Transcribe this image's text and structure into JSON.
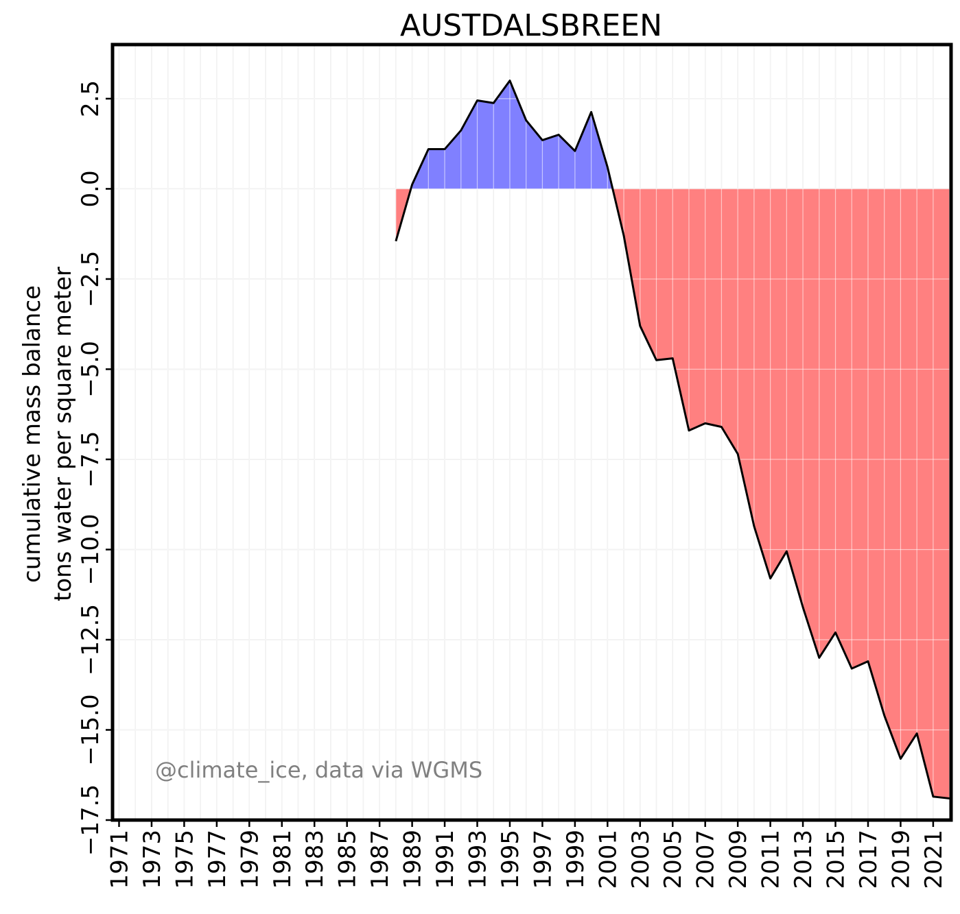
{
  "chart_data": {
    "type": "area",
    "title": "AUSTDALSBREEN",
    "ylabel_line1": "cumulative mass balance",
    "ylabel_line2": "tons water per square meter",
    "xlabel": "",
    "annotation": "@climate_ice, data via WGMS",
    "xlim": [
      1970.6,
      2022.1
    ],
    "ylim": [
      -17.5,
      4.0
    ],
    "x_ticks": [
      1971,
      1973,
      1975,
      1977,
      1979,
      1981,
      1983,
      1985,
      1987,
      1989,
      1991,
      1993,
      1995,
      1997,
      1999,
      2001,
      2003,
      2005,
      2007,
      2009,
      2011,
      2013,
      2015,
      2017,
      2019,
      2021
    ],
    "x_tick_labels": [
      "1971",
      "1973",
      "1975",
      "1977",
      "1979",
      "1981",
      "1983",
      "1985",
      "1987",
      "1989",
      "1991",
      "1993",
      "1995",
      "1997",
      "1999",
      "2001",
      "2003",
      "2005",
      "2007",
      "2009",
      "2011",
      "2013",
      "2015",
      "2017",
      "2019",
      "2021"
    ],
    "y_ticks": [
      2.5,
      0.0,
      -2.5,
      -5.0,
      -7.5,
      -10.0,
      -12.5,
      -15.0,
      -17.5
    ],
    "y_tick_labels": [
      "2.5",
      "0.0",
      "−2.5",
      "−5.0",
      "−7.5",
      "−10.0",
      "−12.5",
      "−15.0",
      "−17.5"
    ],
    "grid": true,
    "x": [
      1988,
      1989,
      1990,
      1991,
      1992,
      1993,
      1994,
      1995,
      1996,
      1997,
      1998,
      1999,
      2000,
      2001,
      2002,
      2003,
      2004,
      2005,
      2006,
      2007,
      2008,
      2009,
      2010,
      2011,
      2012,
      2013,
      2014,
      2015,
      2016,
      2017,
      2018,
      2019,
      2020,
      2021,
      2022
    ],
    "values": [
      -1.45,
      0.12,
      1.1,
      1.1,
      1.62,
      2.45,
      2.38,
      3.0,
      1.9,
      1.35,
      1.5,
      1.05,
      2.13,
      0.6,
      -1.3,
      -3.8,
      -4.75,
      -4.7,
      -6.7,
      -6.5,
      -6.6,
      -7.35,
      -9.35,
      -10.8,
      -10.05,
      -11.6,
      -13.0,
      -12.3,
      -13.3,
      -13.1,
      -14.6,
      -15.8,
      -15.1,
      -16.85,
      -16.9
    ],
    "colors": {
      "positive_fill": "#8080ff",
      "negative_fill": "#ff8080",
      "line": "#000000",
      "grid": "#e5e5e5",
      "annotation": "#808080"
    }
  }
}
